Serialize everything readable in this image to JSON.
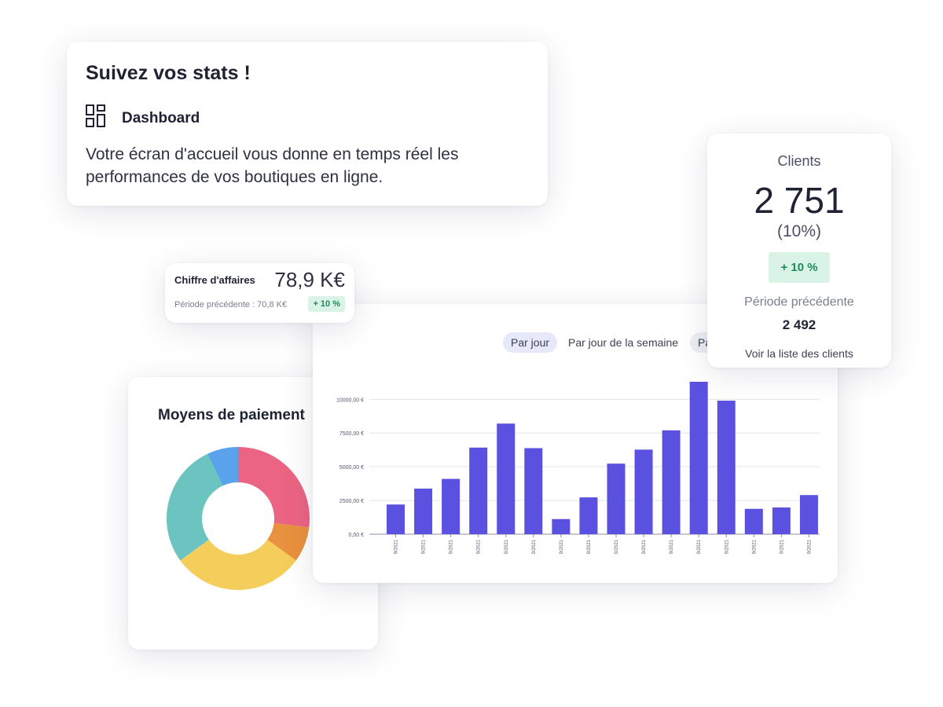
{
  "intro": {
    "title": "Suivez vos stats !",
    "dashboard_label": "Dashboard",
    "description": "Votre écran d'accueil vous donne en temps réel les performances de vos boutiques en ligne.",
    "icon": "dashboard-icon"
  },
  "revenue": {
    "label": "Chiffre d'affaires",
    "value": "78,9 K€",
    "previous": "Période précédente : 70,8 K€",
    "badge": "+ 10 %"
  },
  "clients": {
    "label": "Clients",
    "value": "2 751",
    "percent": "(10%)",
    "badge": "+ 10 %",
    "previous_label": "Période précédente",
    "previous_value": "2 492",
    "link": "Voir la liste des clients"
  },
  "tabs": [
    "Par jour",
    "Par jour de la semaine",
    "Pa"
  ],
  "payments": {
    "title": "Moyens de paiement",
    "chart_data": {
      "type": "pie",
      "slices": [
        {
          "value": 27,
          "color": "#ec6483"
        },
        {
          "value": 8,
          "color": "#e8913e"
        },
        {
          "value": 30,
          "color": "#f5cd5a"
        },
        {
          "value": 28,
          "color": "#6bc4c0"
        },
        {
          "value": 7,
          "color": "#5aa3ec"
        }
      ]
    }
  },
  "chart_data": {
    "type": "bar",
    "categories": [
      "9/2021",
      "9/2021",
      "9/2021",
      "9/2021",
      "9/2021",
      "9/2021",
      "9/2021",
      "9/2021",
      "9/2021",
      "9/2021",
      "9/2021",
      "9/2021",
      "9/2021",
      "9/2021",
      "9/2021",
      "9/2021"
    ],
    "values": [
      2200,
      3380,
      4100,
      6420,
      8200,
      6380,
      1120,
      2730,
      5230,
      6270,
      7700,
      11300,
      9900,
      1880,
      1980,
      2900
    ],
    "y_ticks": [
      "0,00 €",
      "2500,00 €",
      "5000,00 €",
      "7500,00 €",
      "10000,00 €"
    ],
    "y_tick_values": [
      0,
      2500,
      5000,
      7500,
      10000
    ],
    "ylim": [
      0,
      11300
    ],
    "bar_color": "#5b51e0",
    "grid": true
  }
}
